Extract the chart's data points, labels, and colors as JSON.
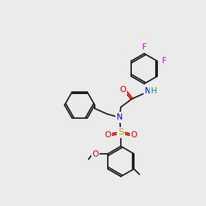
{
  "background_color": "#ebebeb",
  "bond_color": "#1a1a1a",
  "lw": 1.4,
  "atom_colors": {
    "F": "#cc00cc",
    "N": "#0000cc",
    "O": "#cc0000",
    "S": "#aaaa00",
    "H": "#008888",
    "C": "#1a1a1a"
  },
  "font_size": 8.5
}
